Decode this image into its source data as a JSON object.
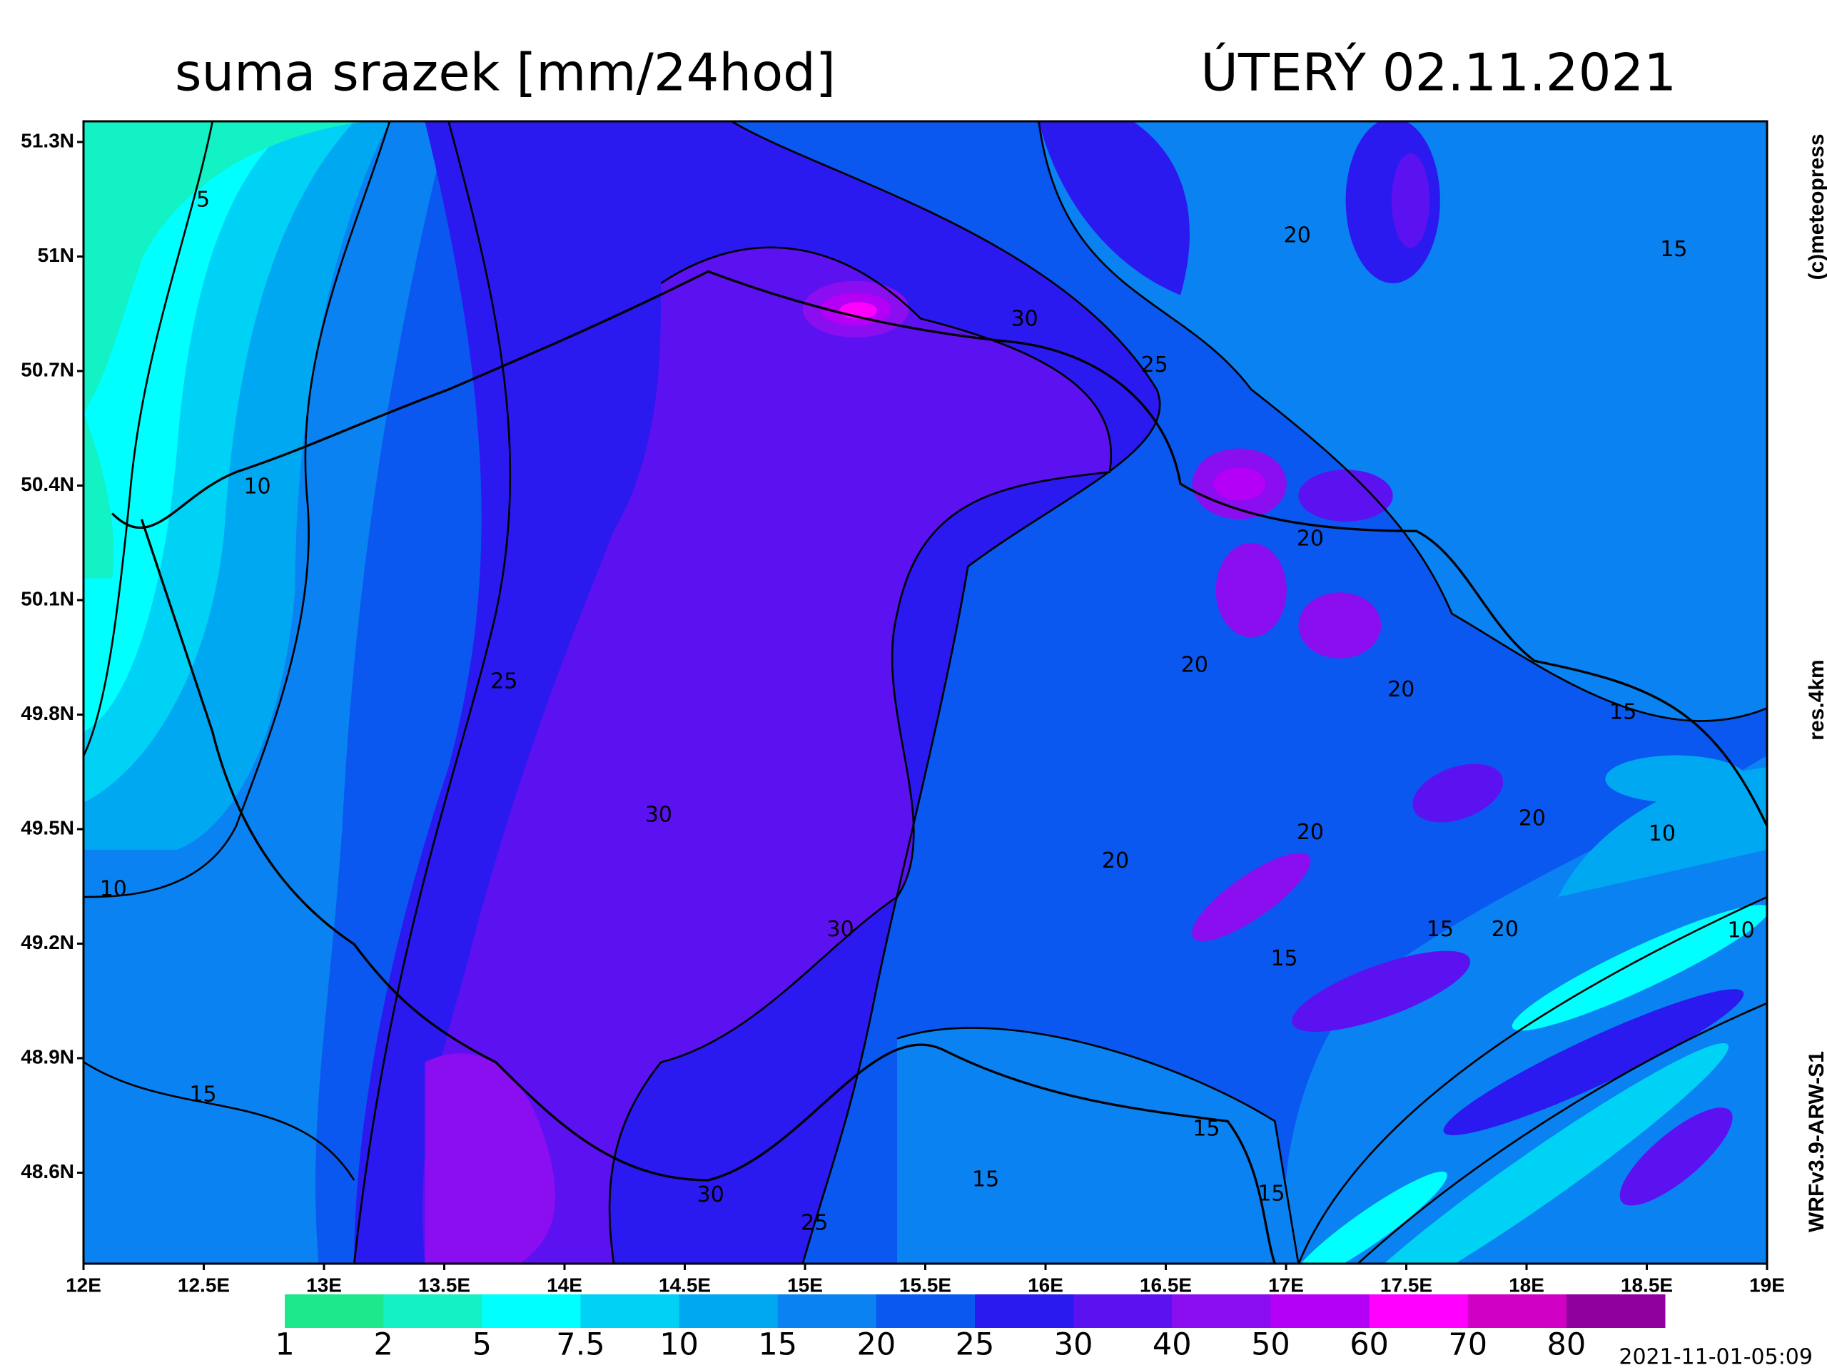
{
  "header": {
    "title": "suma srazek [mm/24hod]",
    "date": "ÚTERÝ 02.11.2021"
  },
  "map": {
    "lat_ticks": [
      "51.3N",
      "51N",
      "50.7N",
      "50.4N",
      "50.1N",
      "49.8N",
      "49.5N",
      "49.2N",
      "48.9N",
      "48.6N"
    ],
    "lon_ticks": [
      "12E",
      "12.5E",
      "13E",
      "13.5E",
      "14E",
      "14.5E",
      "15E",
      "15.5E",
      "16E",
      "16.5E",
      "17E",
      "17.5E",
      "18E",
      "18.5E",
      "19E"
    ],
    "contour_labels": [
      5,
      10,
      25,
      30,
      25,
      20,
      15,
      20,
      20,
      20,
      15,
      20,
      10,
      20,
      20,
      30,
      10,
      30,
      15,
      20,
      10,
      15,
      15,
      15,
      15,
      15,
      30,
      25
    ]
  },
  "colorbar": {
    "labels": [
      1,
      2,
      5,
      7.5,
      10,
      15,
      20,
      25,
      30,
      40,
      50,
      60,
      70,
      80
    ],
    "colors": [
      "#1de88c",
      "#12f2c4",
      "#00ffff",
      "#00d2f6",
      "#00a8f2",
      "#0a82f2",
      "#0a58f0",
      "#2a1af0",
      "#5c12f0",
      "#8a0ef0",
      "#b400f4",
      "#ff00ff",
      "#d000c4",
      "#90009e"
    ]
  },
  "side": {
    "copyright": "(c)meteopress",
    "resolution": "res.4km",
    "model": "WRFv3.9-ARW-S1",
    "timestamp": "2021-11-01-05:09"
  }
}
